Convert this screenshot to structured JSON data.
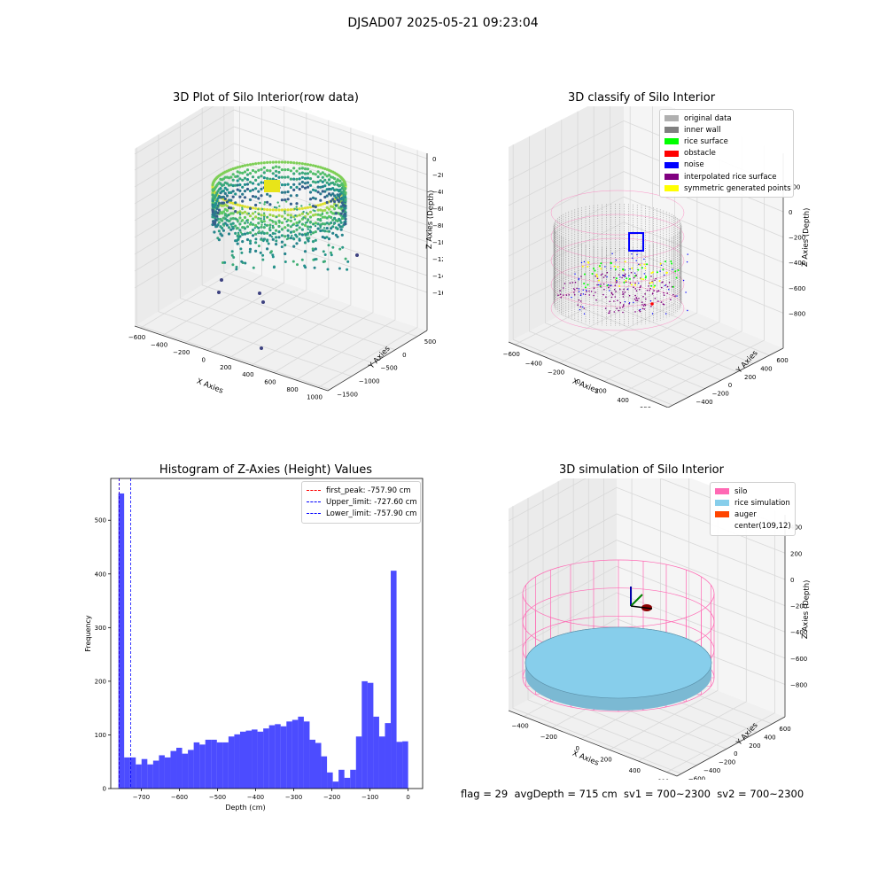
{
  "suptitle": "DJSAD07 2025-05-21 09:23:04",
  "footer": "flag = 29  avgDepth = 715 cm  sv1 = 700~2300  sv2 = 700~2300",
  "colors": {
    "grid": "#d8d8d8",
    "pane": "#f2f2f2",
    "noise": "#0000ff",
    "wall": "#808080",
    "rice": "#00ff00",
    "obstacle": "#ff0000",
    "interp": "#800080",
    "sym": "#ffff00",
    "silo": "#ff69b4",
    "rice_sim": "#87ceeb",
    "auger": "#ff4500",
    "hist": "#0000ff"
  },
  "chart_data": [
    {
      "type": "scatter",
      "title": "3D Plot of Silo Interior(row data)",
      "xlabel": "X Axies",
      "ylabel": "Y Axies",
      "zlabel": "Z Axies (Depth)",
      "x_ticks": [
        "−600",
        "−400",
        "−200",
        "0",
        "200",
        "400",
        "600",
        "800",
        "1000"
      ],
      "y_ticks": [
        "−1500",
        "−1000",
        "−500",
        "0",
        "500"
      ],
      "z_ticks": [
        "0",
        "−200",
        "−400",
        "−600",
        "−800",
        "−1000",
        "−1200",
        "−1400",
        "−1600"
      ],
      "xlim": [
        -650,
        1050
      ],
      "ylim": [
        -1600,
        700
      ],
      "zlim": [
        -1650,
        50
      ],
      "colormap": "viridis",
      "description_points": {
        "ring_radius": 420,
        "ring_center": [
          0,
          0
        ],
        "depth_range": [
          -100,
          -900
        ]
      }
    },
    {
      "type": "scatter",
      "title": "3D classify of Silo Interior",
      "xlabel": "X Axies",
      "ylabel": "Y Axies",
      "zlabel": "Z Axies (Depth)",
      "x_ticks": [
        "−600",
        "−400",
        "−200",
        "0",
        "200",
        "400",
        "600"
      ],
      "y_ticks": [
        "−600",
        "−400",
        "−200",
        "0",
        "200",
        "400",
        "600"
      ],
      "z_ticks": [
        "200",
        "0",
        "−200",
        "−400",
        "−600",
        "−800"
      ],
      "xlim": [
        -650,
        750
      ],
      "ylim": [
        -650,
        700
      ],
      "zlim": [
        -900,
        300
      ],
      "legend": [
        "original data",
        "inner wall",
        "rice surface",
        "obstacle",
        "noise",
        "interpolated rice surface",
        "symmetric generated points"
      ],
      "legend_colors": [
        "#b0b0b0",
        "#808080",
        "#00ff00",
        "#ff0000",
        "#0000ff",
        "#800080",
        "#ffff00"
      ]
    },
    {
      "type": "bar",
      "title": "Histogram of Z-Axies (Height) Values",
      "xlabel": "Depth (cm)",
      "ylabel": "Frequency",
      "x_ticks": [
        "−700",
        "−600",
        "−500",
        "−400",
        "−300",
        "−200",
        "−100",
        "0"
      ],
      "y_ticks": [
        "0",
        "100",
        "200",
        "300",
        "400",
        "500"
      ],
      "xlim": [
        -780,
        38
      ],
      "ylim": [
        0,
        578
      ],
      "bin_start": -760,
      "bin_width": 15.2,
      "values": [
        550,
        58,
        58,
        45,
        55,
        45,
        52,
        62,
        58,
        70,
        76,
        65,
        72,
        86,
        82,
        91,
        91,
        86,
        86,
        97,
        101,
        106,
        108,
        110,
        106,
        112,
        118,
        120,
        116,
        125,
        128,
        134,
        125,
        91,
        85,
        60,
        30,
        13,
        35,
        20,
        35,
        97,
        200,
        197,
        134,
        97,
        122,
        406,
        87,
        88
      ],
      "vlines": [
        {
          "x": -757.9,
          "color": "#ff0000",
          "label": "first_peak: -757.90 cm"
        },
        {
          "x": -727.6,
          "color": "#0000ff",
          "label": "Upper_limit: -727.60 cm"
        },
        {
          "x": -757.9,
          "color": "#0000ff",
          "label": "Lower_limit: -757.90 cm"
        }
      ]
    },
    {
      "type": "scatter",
      "title": "3D simulation of Silo Interior",
      "xlabel": "X Axies",
      "ylabel": "Y Axies",
      "zlabel": "Z Axies (Depth)",
      "x_ticks": [
        "−400",
        "−200",
        "0",
        "200",
        "400",
        "600"
      ],
      "y_ticks": [
        "−600",
        "−400",
        "−200",
        "0",
        "200",
        "400",
        "600"
      ],
      "z_ticks": [
        "400",
        "200",
        "0",
        "−200",
        "−400",
        "−600",
        "−800"
      ],
      "xlim": [
        -550,
        750
      ],
      "ylim": [
        -650,
        700
      ],
      "zlim": [
        -900,
        450
      ],
      "legend": [
        "silo",
        "rice simulation",
        "auger",
        "center(109,12)"
      ],
      "legend_colors": [
        "#ff69b4",
        "#87ceeb",
        "#ff4500",
        ""
      ]
    }
  ]
}
